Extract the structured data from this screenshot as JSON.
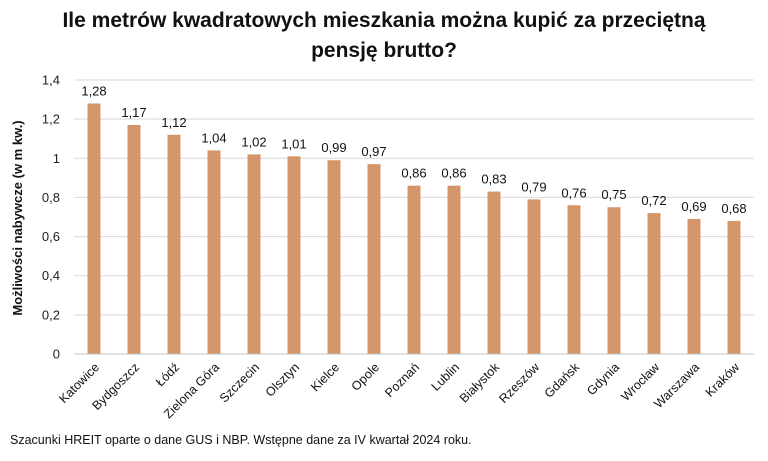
{
  "chart_data": {
    "type": "bar",
    "title_line1": "Ile metrów kwadratowych mieszkania można kupić za przeciętną",
    "title_line2": "pensję brutto?",
    "ylabel": "Możliwości nabywcze (w m kw.)",
    "xlabel": "",
    "categories": [
      "Katowice",
      "Bydgoszcz",
      "Łódź",
      "Zielona Góra",
      "Szczecin",
      "Olsztyn",
      "Kielce",
      "Opole",
      "Poznań",
      "Lublin",
      "Białystok",
      "Rzeszów",
      "Gdańsk",
      "Gdynia",
      "Wrocław",
      "Warszawa",
      "Kraków"
    ],
    "values": [
      1.28,
      1.17,
      1.12,
      1.04,
      1.02,
      1.01,
      0.99,
      0.97,
      0.86,
      0.86,
      0.83,
      0.79,
      0.76,
      0.75,
      0.72,
      0.69,
      0.68
    ],
    "value_labels": [
      "1,28",
      "1,17",
      "1,12",
      "1,04",
      "1,02",
      "1,01",
      "0,99",
      "0,97",
      "0,86",
      "0,86",
      "0,83",
      "0,79",
      "0,76",
      "0,75",
      "0,72",
      "0,69",
      "0,68"
    ],
    "yticks": [
      0,
      0.2,
      0.4,
      0.6,
      0.8,
      1,
      1.2,
      1.4
    ],
    "ytick_labels": [
      "0",
      "0,2",
      "0,4",
      "0,6",
      "0,8",
      "1",
      "1,2",
      "1,4"
    ],
    "ylim": [
      0,
      1.4
    ],
    "grid": true,
    "legend": "none",
    "bar_color": "#D4956A",
    "grid_color": "#d9d9d9"
  },
  "footer": {
    "note": "Szacunki HREIT oparte o dane GUS i NBP. Wstępne dane za IV kwartał 2024 roku."
  }
}
